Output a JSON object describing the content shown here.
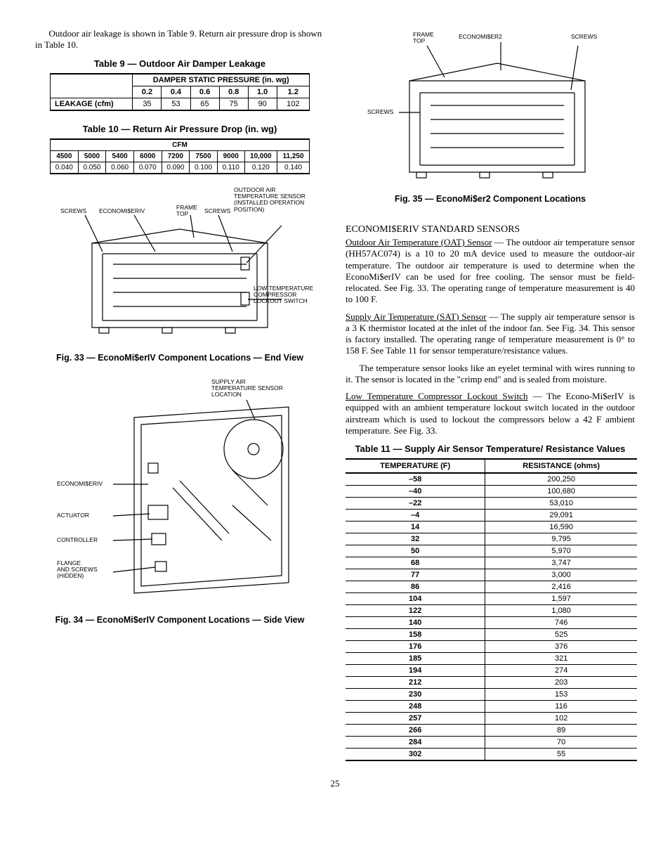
{
  "left": {
    "intro": "Outdoor air leakage is shown in Table 9. Return air pressure drop is shown in Table 10.",
    "table9": {
      "caption": "Table 9 — Outdoor Air Damper Leakage",
      "group_header": "DAMPER STATIC PRESSURE (in. wg)",
      "row_label": "LEAKAGE (cfm)",
      "cols": [
        "0.2",
        "0.4",
        "0.6",
        "0.8",
        "1.0",
        "1.2"
      ],
      "vals": [
        "35",
        "53",
        "65",
        "75",
        "90",
        "102"
      ]
    },
    "table10": {
      "caption": "Table 10 — Return Air Pressure Drop (in. wg)",
      "group_header": "CFM",
      "cols": [
        "4500",
        "5000",
        "5400",
        "6000",
        "7200",
        "7500",
        "9000",
        "10,000",
        "11,250"
      ],
      "vals": [
        "0.040",
        "0.050",
        "0.060",
        "0.070",
        "0.090",
        "0.100",
        "0.110",
        "0.120",
        "0.140"
      ]
    },
    "fig33": {
      "caption": "Fig. 33 — EconoMi$erIV Component Locations — End View",
      "labels": {
        "screws": "SCREWS",
        "econ": "ECONOMI$ERIV",
        "frame": "FRAME\nTOP",
        "screws2": "SCREWS",
        "oat": "OUTDOOR AIR\nTEMPERATURE SENSOR\n(INSTALLED OPERATION\nPOSITION)",
        "lowtemp": "LOW TEMPERATURE\nCOMPRESSOR\nLOCKOUT SWITCH"
      }
    },
    "fig34": {
      "caption": "Fig. 34 — EconoMi$erIV Component Locations — Side View",
      "labels": {
        "sat": "SUPPLY AIR\nTEMPERATURE SENSOR\nLOCATION",
        "econ": "ECONOMI$ERIV",
        "actuator": "ACTUATOR",
        "controller": "CONTROLLER",
        "flange": "FLANGE\nAND SCREWS\n(HIDDEN)"
      }
    }
  },
  "right": {
    "fig35": {
      "caption": "Fig. 35 — EconoMi$er2 Component Locations",
      "labels": {
        "frame": "FRAME\nTOP",
        "econ": "ECONOMI$ER2",
        "screws_r": "SCREWS",
        "screws_l": "SCREWS"
      }
    },
    "section_head": "ECONOMI$ERIV STANDARD SENSORS",
    "oat_para_lead": "Outdoor Air Temperature (OAT) Sensor",
    "oat_para": " — The outdoor air temperature sensor (HH57AC074) is a 10 to 20 mA device used to measure the outdoor-air temperature. The outdoor air temperature is used to determine when the EconoMi$erIV can be used for free cooling. The sensor must be field-relocated. See Fig. 33. The operating range of temperature measurement is 40 to 100 F.",
    "sat_para_lead": "Supply Air Temperature (SAT) Sensor",
    "sat_para": " — The supply air temperature sensor is a 3 K thermistor located at the inlet of the indoor fan. See Fig. 34. This sensor is factory installed. The operating range of temperature measurement is 0° to 158 F. See Table 11 for sensor temperature/resistance values.",
    "sat_para2": "The temperature sensor looks like an eyelet terminal with wires running to it. The sensor is located in the \"crimp end\" and is sealed from moisture.",
    "low_para_lead": "Low Temperature Compressor Lockout Switch",
    "low_para": " — The Econo-Mi$erIV is equipped with an ambient temperature lockout switch located in the outdoor airstream which is used to lockout the compressors below a 42 F ambient temperature. See Fig. 33.",
    "table11": {
      "caption": "Table 11 — Supply Air Sensor Temperature/ Resistance Values",
      "head_temp": "TEMPERATURE (F)",
      "head_res": "RESISTANCE (ohms)",
      "rows": [
        [
          "–58",
          "200,250"
        ],
        [
          "–40",
          "100,680"
        ],
        [
          "–22",
          "53,010"
        ],
        [
          "–4",
          "29,091"
        ],
        [
          "14",
          "16,590"
        ],
        [
          "32",
          "9,795"
        ],
        [
          "50",
          "5,970"
        ],
        [
          "68",
          "3,747"
        ],
        [
          "77",
          "3,000"
        ],
        [
          "86",
          "2,416"
        ],
        [
          "104",
          "1,597"
        ],
        [
          "122",
          "1,080"
        ],
        [
          "140",
          "746"
        ],
        [
          "158",
          "525"
        ],
        [
          "176",
          "376"
        ],
        [
          "185",
          "321"
        ],
        [
          "194",
          "274"
        ],
        [
          "212",
          "203"
        ],
        [
          "230",
          "153"
        ],
        [
          "248",
          "116"
        ],
        [
          "257",
          "102"
        ],
        [
          "266",
          "89"
        ],
        [
          "284",
          "70"
        ],
        [
          "302",
          "55"
        ]
      ]
    }
  },
  "page_number": "25"
}
